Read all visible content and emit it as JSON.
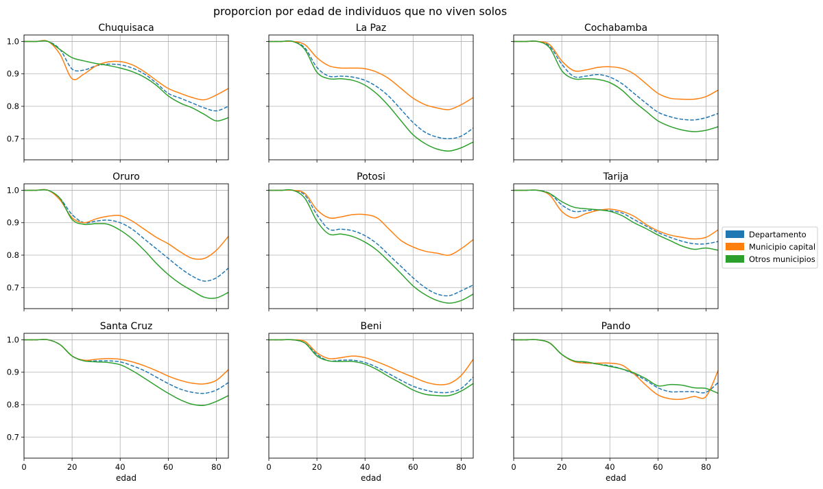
{
  "suptitle": "proporcion por edad de individuos que no viven solos",
  "legend_items": [
    {
      "label": "Departamento",
      "color": "#1f77b4"
    },
    {
      "label": "Municipio capital",
      "color": "#ff7f0e"
    },
    {
      "label": "Otros municipios",
      "color": "#2ca02c"
    }
  ],
  "chart_data": {
    "type": "line",
    "layout": "3x3 small multiples, shared x and y axes",
    "xlabel": "edad",
    "ylabel": "",
    "xlim": [
      0,
      85
    ],
    "ylim": [
      0.635,
      1.02
    ],
    "xticks": [
      0,
      20,
      40,
      60,
      80
    ],
    "yticks": [
      0.7,
      0.8,
      0.9,
      1.0
    ],
    "ytick_labels": [
      "0.7",
      "0.8",
      "0.9",
      "1.0"
    ],
    "grid": true,
    "legend_position": "right of figure",
    "x": [
      0,
      5,
      10,
      15,
      20,
      25,
      30,
      35,
      40,
      45,
      50,
      55,
      60,
      65,
      70,
      75,
      80,
      85
    ],
    "panels": [
      {
        "title": "Chuquisaca",
        "series": [
          {
            "name": "Departamento",
            "style": "dashed",
            "values": [
              1.0,
              1.0,
              1.0,
              0.975,
              0.915,
              0.912,
              0.925,
              0.93,
              0.928,
              0.918,
              0.9,
              0.872,
              0.84,
              0.825,
              0.81,
              0.795,
              0.786,
              0.8
            ]
          },
          {
            "name": "Municipio capital",
            "style": "solid",
            "values": [
              1.0,
              1.0,
              1.0,
              0.96,
              0.885,
              0.9,
              0.925,
              0.937,
              0.938,
              0.928,
              0.907,
              0.88,
              0.855,
              0.84,
              0.827,
              0.82,
              0.835,
              0.855
            ]
          },
          {
            "name": "Otros municipios",
            "style": "solid",
            "values": [
              1.0,
              1.0,
              1.0,
              0.975,
              0.95,
              0.94,
              0.932,
              0.926,
              0.918,
              0.907,
              0.89,
              0.865,
              0.832,
              0.81,
              0.795,
              0.775,
              0.755,
              0.765
            ]
          }
        ]
      },
      {
        "title": "La Paz",
        "series": [
          {
            "name": "Departamento",
            "style": "dashed",
            "values": [
              1.0,
              1.0,
              1.0,
              0.98,
              0.92,
              0.893,
              0.893,
              0.89,
              0.88,
              0.86,
              0.83,
              0.79,
              0.75,
              0.72,
              0.705,
              0.7,
              0.708,
              0.733
            ]
          },
          {
            "name": "Municipio capital",
            "style": "solid",
            "values": [
              1.0,
              1.0,
              1.0,
              0.99,
              0.95,
              0.925,
              0.918,
              0.918,
              0.916,
              0.905,
              0.885,
              0.855,
              0.825,
              0.805,
              0.795,
              0.79,
              0.805,
              0.827
            ]
          },
          {
            "name": "Otros municipios",
            "style": "solid",
            "values": [
              1.0,
              1.0,
              1.0,
              0.975,
              0.905,
              0.885,
              0.885,
              0.88,
              0.865,
              0.838,
              0.8,
              0.755,
              0.712,
              0.685,
              0.668,
              0.662,
              0.672,
              0.69
            ]
          }
        ]
      },
      {
        "title": "Cochabamba",
        "series": [
          {
            "name": "Departamento",
            "style": "dashed",
            "values": [
              1.0,
              1.0,
              1.0,
              0.985,
              0.93,
              0.892,
              0.893,
              0.898,
              0.89,
              0.87,
              0.84,
              0.81,
              0.782,
              0.768,
              0.76,
              0.758,
              0.765,
              0.778
            ]
          },
          {
            "name": "Municipio capital",
            "style": "solid",
            "values": [
              1.0,
              1.0,
              1.0,
              0.99,
              0.94,
              0.91,
              0.912,
              0.92,
              0.922,
              0.917,
              0.9,
              0.87,
              0.84,
              0.825,
              0.822,
              0.822,
              0.83,
              0.85
            ]
          },
          {
            "name": "Otros municipios",
            "style": "solid",
            "values": [
              1.0,
              1.0,
              1.0,
              0.98,
              0.91,
              0.885,
              0.885,
              0.883,
              0.873,
              0.85,
              0.815,
              0.785,
              0.755,
              0.738,
              0.727,
              0.722,
              0.726,
              0.737
            ]
          }
        ]
      },
      {
        "title": "Oruro",
        "series": [
          {
            "name": "Departamento",
            "style": "dashed",
            "values": [
              1.0,
              1.0,
              1.0,
              0.975,
              0.925,
              0.9,
              0.905,
              0.908,
              0.9,
              0.88,
              0.85,
              0.82,
              0.79,
              0.76,
              0.735,
              0.72,
              0.73,
              0.76
            ]
          },
          {
            "name": "Municipio capital",
            "style": "solid",
            "values": [
              1.0,
              1.0,
              1.0,
              0.97,
              0.915,
              0.9,
              0.912,
              0.92,
              0.922,
              0.905,
              0.88,
              0.855,
              0.835,
              0.81,
              0.79,
              0.79,
              0.815,
              0.858
            ]
          },
          {
            "name": "Otros municipios",
            "style": "solid",
            "values": [
              1.0,
              1.0,
              1.0,
              0.975,
              0.91,
              0.895,
              0.897,
              0.895,
              0.877,
              0.85,
              0.815,
              0.775,
              0.74,
              0.712,
              0.69,
              0.67,
              0.668,
              0.685
            ]
          }
        ]
      },
      {
        "title": "Potosi",
        "series": [
          {
            "name": "Departamento",
            "style": "dashed",
            "values": [
              1.0,
              1.0,
              1.0,
              0.985,
              0.925,
              0.88,
              0.88,
              0.875,
              0.86,
              0.835,
              0.8,
              0.765,
              0.73,
              0.7,
              0.68,
              0.675,
              0.69,
              0.708
            ]
          },
          {
            "name": "Municipio capital",
            "style": "solid",
            "values": [
              1.0,
              1.0,
              1.0,
              0.99,
              0.94,
              0.915,
              0.918,
              0.925,
              0.925,
              0.915,
              0.88,
              0.845,
              0.825,
              0.812,
              0.806,
              0.8,
              0.82,
              0.848
            ]
          },
          {
            "name": "Otros municipios",
            "style": "solid",
            "values": [
              1.0,
              1.0,
              1.0,
              0.975,
              0.905,
              0.865,
              0.865,
              0.857,
              0.84,
              0.815,
              0.78,
              0.743,
              0.705,
              0.678,
              0.66,
              0.652,
              0.66,
              0.68
            ]
          }
        ]
      },
      {
        "title": "Tarija",
        "series": [
          {
            "name": "Departamento",
            "style": "dashed",
            "values": [
              1.0,
              1.0,
              1.0,
              0.99,
              0.955,
              0.935,
              0.937,
              0.94,
              0.937,
              0.93,
              0.91,
              0.89,
              0.87,
              0.855,
              0.843,
              0.835,
              0.835,
              0.842
            ]
          },
          {
            "name": "Municipio capital",
            "style": "solid",
            "values": [
              1.0,
              1.0,
              1.0,
              0.985,
              0.935,
              0.915,
              0.928,
              0.938,
              0.942,
              0.935,
              0.92,
              0.895,
              0.875,
              0.862,
              0.855,
              0.85,
              0.855,
              0.878
            ]
          },
          {
            "name": "Otros municipios",
            "style": "solid",
            "values": [
              1.0,
              1.0,
              1.0,
              0.99,
              0.965,
              0.948,
              0.943,
              0.94,
              0.935,
              0.922,
              0.9,
              0.882,
              0.862,
              0.845,
              0.828,
              0.818,
              0.822,
              0.815
            ]
          }
        ]
      },
      {
        "title": "Santa Cruz",
        "series": [
          {
            "name": "Departamento",
            "style": "dashed",
            "values": [
              1.0,
              1.0,
              1.0,
              0.985,
              0.95,
              0.935,
              0.935,
              0.935,
              0.932,
              0.92,
              0.905,
              0.885,
              0.865,
              0.848,
              0.838,
              0.835,
              0.845,
              0.868
            ]
          },
          {
            "name": "Municipio capital",
            "style": "solid",
            "values": [
              1.0,
              1.0,
              1.0,
              0.985,
              0.95,
              0.937,
              0.94,
              0.942,
              0.94,
              0.932,
              0.92,
              0.905,
              0.888,
              0.875,
              0.866,
              0.864,
              0.875,
              0.908
            ]
          },
          {
            "name": "Otros municipios",
            "style": "solid",
            "values": [
              1.0,
              1.0,
              1.0,
              0.985,
              0.95,
              0.935,
              0.932,
              0.93,
              0.923,
              0.905,
              0.882,
              0.858,
              0.835,
              0.815,
              0.801,
              0.798,
              0.81,
              0.828
            ]
          }
        ]
      },
      {
        "title": "Beni",
        "series": [
          {
            "name": "Departamento",
            "style": "dashed",
            "values": [
              1.0,
              1.0,
              1.0,
              0.99,
              0.955,
              0.935,
              0.937,
              0.937,
              0.93,
              0.915,
              0.895,
              0.875,
              0.857,
              0.845,
              0.838,
              0.838,
              0.85,
              0.885
            ]
          },
          {
            "name": "Municipio capital",
            "style": "solid",
            "values": [
              1.0,
              1.0,
              1.0,
              0.995,
              0.96,
              0.942,
              0.945,
              0.95,
              0.945,
              0.932,
              0.917,
              0.9,
              0.885,
              0.87,
              0.862,
              0.865,
              0.89,
              0.94
            ]
          },
          {
            "name": "Otros municipios",
            "style": "solid",
            "values": [
              1.0,
              1.0,
              1.0,
              0.99,
              0.95,
              0.935,
              0.933,
              0.933,
              0.925,
              0.908,
              0.886,
              0.866,
              0.845,
              0.832,
              0.828,
              0.828,
              0.842,
              0.865
            ]
          }
        ]
      },
      {
        "title": "Pando",
        "series": [
          {
            "name": "Departamento",
            "style": "dashed",
            "values": [
              1.0,
              1.0,
              1.0,
              0.99,
              0.955,
              0.935,
              0.93,
              0.925,
              0.92,
              0.91,
              0.895,
              0.875,
              0.852,
              0.84,
              0.84,
              0.84,
              0.838,
              0.868
            ]
          },
          {
            "name": "Municipio capital",
            "style": "solid",
            "values": [
              1.0,
              1.0,
              1.0,
              0.99,
              0.955,
              0.933,
              0.928,
              0.928,
              0.928,
              0.922,
              0.895,
              0.86,
              0.83,
              0.818,
              0.817,
              0.825,
              0.825,
              0.905
            ]
          },
          {
            "name": "Otros municipios",
            "style": "solid",
            "values": [
              1.0,
              1.0,
              1.0,
              0.99,
              0.955,
              0.935,
              0.932,
              0.925,
              0.918,
              0.91,
              0.898,
              0.88,
              0.858,
              0.862,
              0.86,
              0.852,
              0.85,
              0.835
            ]
          }
        ]
      }
    ]
  }
}
